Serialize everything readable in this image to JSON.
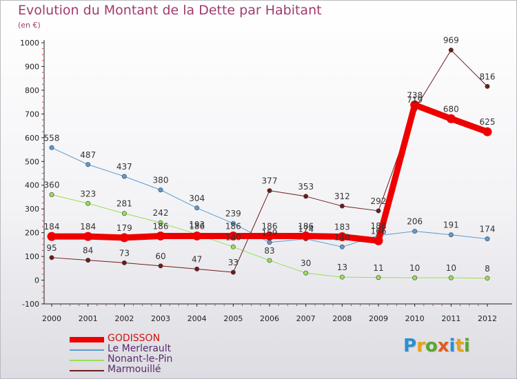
{
  "title": "Evolution du Montant de la Dette par Habitant",
  "subtitle": "(en €)",
  "logo": {
    "letters": [
      "P",
      "r",
      "o",
      "x",
      "i",
      "t",
      "i"
    ],
    "colors": [
      "#2a8fd6",
      "#e8a21a",
      "#58a82c",
      "#e35b1c",
      "#2a8fd6",
      "#e8a21a",
      "#58a82c"
    ]
  },
  "chart_data": {
    "type": "line",
    "title": "Evolution du Montant de la Dette par Habitant",
    "ylabel": "(en €)",
    "xlabel": "",
    "x": [
      "2000",
      "2001",
      "2002",
      "2003",
      "2004",
      "2005",
      "2006",
      "2007",
      "2008",
      "2009",
      "2010",
      "2011",
      "2012"
    ],
    "yticks": [
      "-100",
      "0",
      "100",
      "200",
      "300",
      "400",
      "500",
      "600",
      "700",
      "800",
      "900",
      "1000"
    ],
    "ylim": [
      -100,
      1000
    ],
    "grid": false,
    "legend_position": "bottom-left",
    "series": [
      {
        "name": "GODISSON",
        "color": "#ee0000",
        "width": 9,
        "values": [
          184,
          184,
          179,
          186,
          186,
          186,
          186,
          186,
          183,
          166,
          738,
          680,
          625
        ],
        "labels": [
          "184",
          "184",
          "179",
          "186",
          "186",
          "186",
          "186",
          "186",
          "183",
          "166",
          "738",
          "680",
          "625"
        ]
      },
      {
        "name": "Le Merlerault",
        "color": "#5b9bd0",
        "width": 1,
        "values": [
          558,
          487,
          437,
          380,
          304,
          239,
          159,
          174,
          140,
          188,
          206,
          191,
          174
        ],
        "labels": [
          "558",
          "487",
          "437",
          "380",
          "304",
          "239",
          "159",
          "174",
          "140",
          "188",
          "206",
          "191",
          "174"
        ]
      },
      {
        "name": "Nonant-le-Pin",
        "color": "#99dd55",
        "width": 1,
        "values": [
          360,
          323,
          281,
          242,
          193,
          140,
          83,
          30,
          13,
          11,
          10,
          10,
          8
        ],
        "labels": [
          "360",
          "323",
          "281",
          "242",
          "193",
          "140",
          "83",
          "30",
          "13",
          "11",
          "10",
          "10",
          "8"
        ]
      },
      {
        "name": "Marmouillé",
        "color": "#6e1a1a",
        "width": 1,
        "values": [
          95,
          84,
          73,
          60,
          47,
          33,
          377,
          353,
          312,
          292,
          719,
          969,
          816
        ],
        "labels": [
          "95",
          "84",
          "73",
          "60",
          "47",
          "33",
          "377",
          "353",
          "312",
          "292",
          "719",
          "969",
          "816"
        ]
      }
    ]
  }
}
